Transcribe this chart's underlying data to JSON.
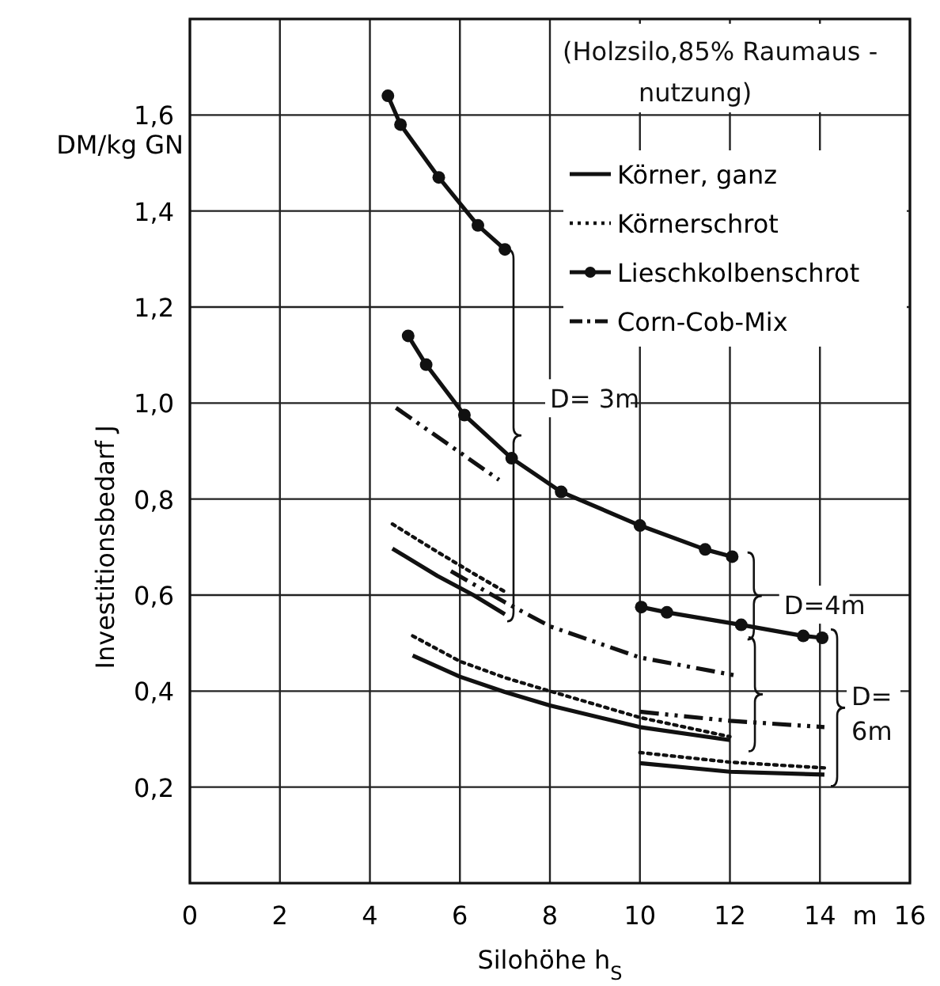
{
  "chart_data": {
    "type": "line",
    "xlabel": "Silohöhe h$_{S}$",
    "ylabel": "Investitionsbedarf J",
    "xlim": [
      0,
      16
    ],
    "ylim": [
      0,
      1.8
    ],
    "xticks": [
      0,
      2,
      4,
      6,
      8,
      10,
      12,
      14,
      {
        "value": 15,
        "label": "m"
      },
      16
    ],
    "yticks": [
      {
        "value": 0.2,
        "label": "0,2"
      },
      {
        "value": 0.4,
        "label": "0,4"
      },
      {
        "value": 0.6,
        "label": "0,6"
      },
      {
        "value": 0.8,
        "label": "0,8"
      },
      {
        "value": 1.0,
        "label": "1,0"
      },
      {
        "value": 1.2,
        "label": "1,2"
      },
      {
        "value": 1.4,
        "label": "1,4"
      },
      {
        "value": 1.6,
        "label": "1,6"
      }
    ],
    "grid": true,
    "legend": "top right",
    "series": [
      {
        "name": "Körner, ganz",
        "color": "#111111",
        "line_style": "solid",
        "marker": "none",
        "x": [
          4.5,
          5.5,
          6.3,
          7
        ],
        "values": [
          0.697,
          0.64,
          0.6,
          0.56
        ]
      },
      {
        "name": "Körnerschrot",
        "color": "#111111",
        "line_style": "dotted",
        "marker": "none",
        "x": [
          4.5,
          5.5,
          6.3,
          7
        ],
        "values": [
          0.748,
          0.69,
          0.645,
          0.607
        ]
      },
      {
        "name": "Lieschkolbenschrot",
        "color": "#111111",
        "line_style": "solid",
        "marker": "circle",
        "x": [
          4.85,
          5.25,
          6.1,
          7.15,
          8.25,
          10,
          11.45,
          12.05
        ],
        "values": [
          1.14,
          1.08,
          0.975,
          0.885,
          0.815,
          0.745,
          0.695,
          0.68
        ]
      },
      {
        "name": "Corn-Cob-Mix",
        "color": "#111111",
        "line_style": "dashed",
        "marker": "none",
        "x": [
          4.58,
          6.87
        ],
        "values": [
          0.99,
          0.84
        ]
      },
      {
        "color": "#111111",
        "line_style": "solid",
        "marker": "circle",
        "x": [
          4.4,
          4.68,
          5.53,
          6.4,
          7.0
        ],
        "values": [
          1.64,
          1.58,
          1.47,
          1.37,
          1.32
        ]
      },
      {
        "color": "#111111",
        "line_style": "dashed",
        "marker": "none",
        "x": [
          5.8,
          7,
          8,
          10,
          12.1
        ],
        "values": [
          0.65,
          0.585,
          0.535,
          0.47,
          0.433
        ]
      },
      {
        "color": "#111111",
        "line_style": "solid",
        "marker": "circle",
        "x": [
          10.03,
          10.6,
          12.25,
          13.63,
          14.05
        ],
        "values": [
          0.575,
          0.564,
          0.538,
          0.515,
          0.511
        ]
      },
      {
        "color": "#111111",
        "line_style": "dotted",
        "marker": "none",
        "x": [
          4.95,
          6,
          7,
          8,
          10,
          12
        ],
        "values": [
          0.515,
          0.462,
          0.428,
          0.4,
          0.345,
          0.305
        ]
      },
      {
        "color": "#111111",
        "line_style": "solid",
        "marker": "none",
        "x": [
          4.95,
          6,
          7,
          8,
          10,
          12
        ],
        "values": [
          0.474,
          0.43,
          0.398,
          0.37,
          0.325,
          0.298
        ]
      },
      {
        "color": "#111111",
        "line_style": "dashed",
        "marker": "none",
        "x": [
          10,
          12,
          14.1
        ],
        "values": [
          0.357,
          0.338,
          0.325
        ]
      },
      {
        "color": "#111111",
        "line_style": "dotted",
        "marker": "none",
        "x": [
          10,
          12,
          14.1
        ],
        "values": [
          0.272,
          0.252,
          0.24
        ]
      },
      {
        "color": "#111111",
        "line_style": "solid",
        "marker": "none",
        "x": [
          10,
          12,
          14.1
        ],
        "values": [
          0.25,
          0.232,
          0.226
        ]
      }
    ],
    "annotations": [
      "(Holzsilo,85% Raumaus -\nnutzung)",
      "DM/kg GN",
      "D= 3m",
      "D=4m",
      "D= 6m"
    ]
  }
}
